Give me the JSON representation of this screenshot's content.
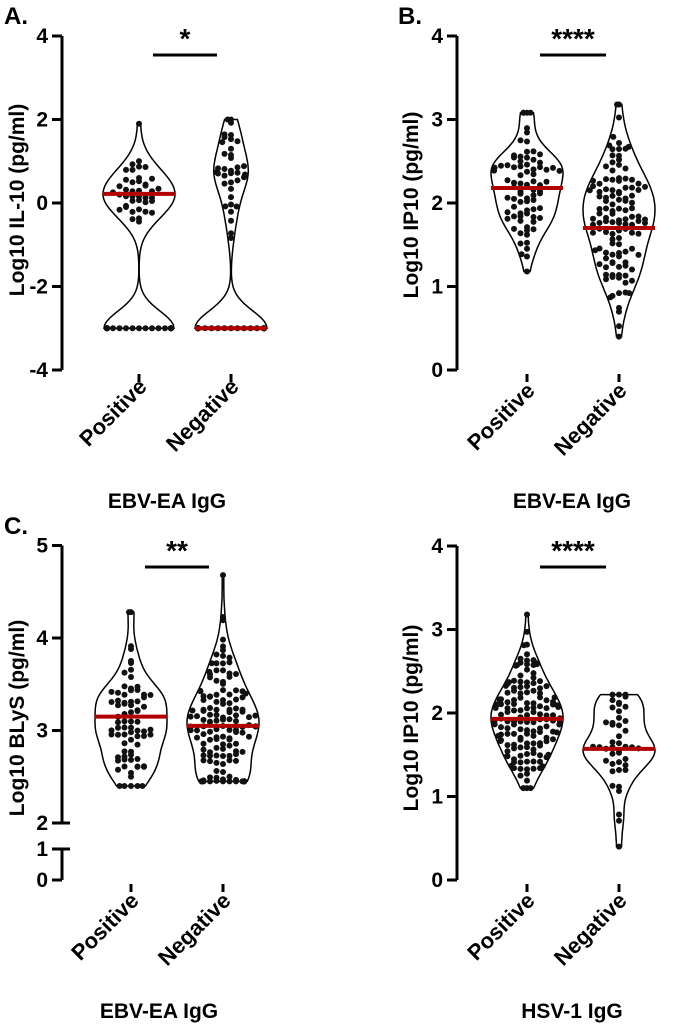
{
  "chart_data": [
    {
      "type": "violin",
      "panel_label": "A.",
      "xlabel": "EBV-EA IgG",
      "ylabel": "Log10 IL-10 (pg/ml)",
      "ylim": [
        -4,
        4
      ],
      "yticks": [
        -4,
        -2,
        0,
        2,
        4
      ],
      "categories": [
        "Positive",
        "Negative"
      ],
      "significance": "*",
      "series": [
        {
          "name": "Positive",
          "median": 0.22,
          "min": -3,
          "max": 1.9,
          "bulk_center": 0.35,
          "bulk_sd": 0.4,
          "n_bulk": 40,
          "n_floor": 28
        },
        {
          "name": "Negative",
          "median": -3.0,
          "min": -3,
          "max": 2.0,
          "bulk_center": 0.6,
          "bulk_sd": 0.55,
          "n_bulk": 36,
          "n_floor": 40
        }
      ]
    },
    {
      "type": "violin",
      "panel_label": "B.",
      "xlabel": "EBV-EA IgG",
      "ylabel": "Log10 IP10 (pg/ml)",
      "ylim": [
        0,
        4
      ],
      "yticks": [
        0,
        1,
        2,
        3,
        4
      ],
      "categories": [
        "Positive",
        "Negative"
      ],
      "significance": "****",
      "series": [
        {
          "name": "Positive",
          "median": 2.18,
          "min": 1.18,
          "max": 3.08,
          "n": 78
        },
        {
          "name": "Negative",
          "median": 1.7,
          "min": 0.4,
          "max": 3.18,
          "n": 118
        }
      ]
    },
    {
      "type": "violin",
      "panel_label": "C.",
      "xlabel": "EBV-EA IgG",
      "ylabel": "Log10 BLyS (pg/ml)",
      "ylim": [
        0,
        5
      ],
      "yticks": [
        0,
        1,
        2,
        3,
        4,
        5
      ],
      "axis_break": [
        1,
        2
      ],
      "categories": [
        "Positive",
        "Negative"
      ],
      "significance": "**",
      "series": [
        {
          "name": "Positive",
          "median": 3.15,
          "min": 2.4,
          "max": 4.28,
          "n": 75
        },
        {
          "name": "Negative",
          "median": 3.05,
          "min": 2.45,
          "max": 4.68,
          "n": 140
        }
      ]
    },
    {
      "type": "violin",
      "panel_label": "",
      "xlabel": "HSV-1 IgG",
      "ylabel": "Log10 IP10 (pg/ml)",
      "ylim": [
        0,
        4
      ],
      "yticks": [
        0,
        1,
        2,
        3,
        4
      ],
      "categories": [
        "Positive",
        "Negative"
      ],
      "significance": "****",
      "series": [
        {
          "name": "Positive",
          "median": 1.93,
          "min": 1.1,
          "max": 3.18,
          "n": 150
        },
        {
          "name": "Negative",
          "median": 1.57,
          "min": 0.4,
          "max": 2.22,
          "n": 42
        }
      ]
    }
  ]
}
